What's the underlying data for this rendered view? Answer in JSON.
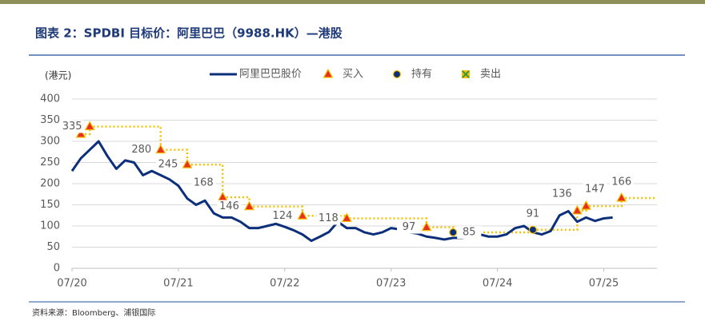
{
  "chart_data": {
    "type": "line",
    "title": "图表 2：SPDBI 目标价：阿里巴巴（9988.HK）—港股",
    "y_label": "(港元)",
    "source": "资料来源：Bloomberg、浦银国际",
    "x": [
      "07/20",
      "08/20",
      "09/20",
      "10/20",
      "11/20",
      "12/20",
      "01/21",
      "02/21",
      "03/21",
      "04/21",
      "05/21",
      "06/21",
      "07/21",
      "08/21",
      "09/21",
      "10/21",
      "11/21",
      "12/21",
      "01/22",
      "02/22",
      "03/22",
      "04/22",
      "05/22",
      "06/22",
      "07/22",
      "08/22",
      "09/22",
      "10/22",
      "11/22",
      "12/22",
      "01/23",
      "02/23",
      "03/23",
      "04/23",
      "05/23",
      "06/23",
      "07/23",
      "08/23",
      "09/23",
      "10/23",
      "11/23",
      "12/23",
      "01/24",
      "02/24",
      "03/24",
      "04/24",
      "05/24",
      "06/24",
      "07/24",
      "08/24",
      "09/24",
      "10/24",
      "11/24",
      "12/24",
      "01/25",
      "02/25",
      "03/25",
      "04/25",
      "05/25",
      "06/25",
      "07/25",
      "08/25"
    ],
    "series": [
      {
        "name": "阿里巴巴股价",
        "color": "#0b2f7a",
        "values": [
          230,
          260,
          280,
          300,
          265,
          235,
          255,
          250,
          220,
          230,
          220,
          210,
          195,
          165,
          150,
          160,
          130,
          120,
          120,
          110,
          95,
          95,
          100,
          105,
          98,
          90,
          80,
          65,
          75,
          86,
          110,
          95,
          95,
          85,
          80,
          85,
          95,
          92,
          85,
          82,
          75,
          72,
          68,
          72,
          72,
          75,
          80,
          75,
          75,
          80,
          95,
          100,
          85,
          80,
          88,
          125,
          135,
          110,
          120,
          112,
          118,
          120
        ]
      }
    ],
    "markers": [
      {
        "name": "买入",
        "shape": "triangle",
        "color": "#e8301f"
      },
      {
        "name": "持有",
        "shape": "circle",
        "color": "#0b2f7a"
      },
      {
        "name": "卖出",
        "shape": "cross-square",
        "color": "#3a9a3a"
      }
    ],
    "target_color": "#f5c000",
    "events": {
      "x": [
        "08/20",
        "09/20",
        "05/21",
        "08/21",
        "12/21",
        "03/22",
        "09/22",
        "02/23",
        "11/23",
        "02/24",
        "11/24",
        "04/25",
        "05/25",
        "09/25"
      ],
      "values": [
        317,
        335,
        280,
        245,
        168,
        146,
        124,
        118,
        97,
        85,
        91,
        136,
        147,
        166
      ],
      "value_labels": [
        null,
        "335",
        "280",
        "245",
        "168",
        "146",
        "124",
        "118",
        "97",
        "85",
        "91",
        "136",
        "147",
        "166"
      ],
      "actions": [
        "买入",
        "买入",
        "买入",
        "买入",
        "买入",
        "买入",
        "买入",
        "买入",
        "买入",
        "持有",
        "持有",
        "买入",
        "买入",
        "买入"
      ]
    },
    "xlim": [
      "07/20",
      "01/26"
    ],
    "xticks": [
      "07/20",
      "07/21",
      "07/22",
      "07/23",
      "07/24",
      "07/25"
    ],
    "ylim": [
      0,
      400
    ],
    "yticks": [
      0,
      50,
      100,
      150,
      200,
      250,
      300,
      350,
      400
    ],
    "grid": true
  }
}
